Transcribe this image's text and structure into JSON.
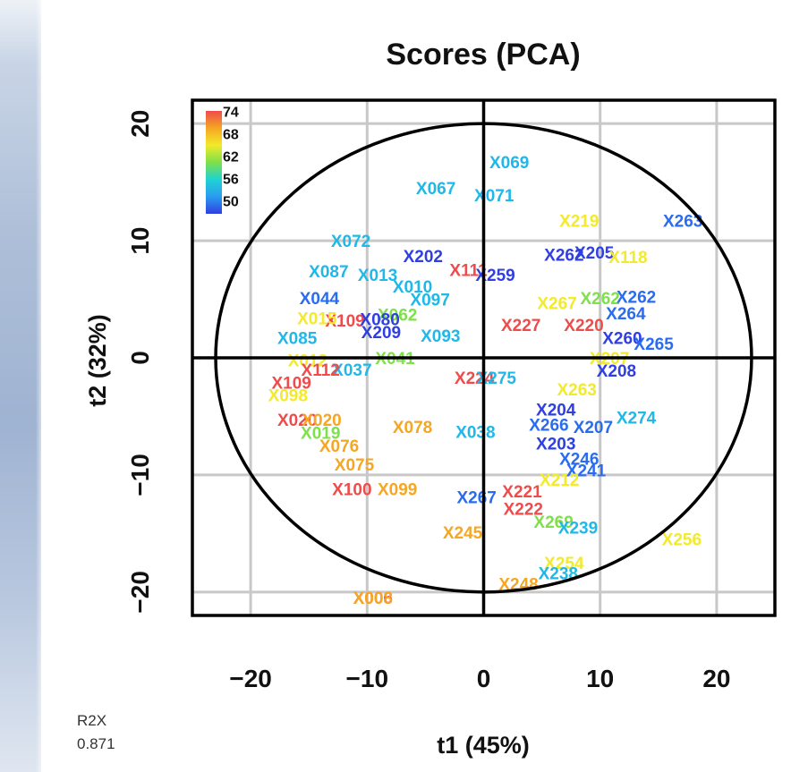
{
  "r2x": {
    "label": "R2X",
    "value": "0.871"
  },
  "chart_data": {
    "type": "scatter",
    "title": "Scores (PCA)",
    "xlabel": "t1 (45%)",
    "ylabel": "t2 (32%)",
    "xlim": [
      -25,
      25
    ],
    "ylim": [
      -22,
      22
    ],
    "xticks": [
      -20,
      -10,
      0,
      10,
      20
    ],
    "yticks": [
      -20,
      -10,
      0,
      10,
      20
    ],
    "grid": true,
    "ellipse": {
      "cx": 0,
      "cy": 0,
      "rx": 23,
      "ry": 20
    },
    "colorbar": {
      "position": "top-left",
      "labels": [
        "74",
        "68",
        "62",
        "56",
        "50"
      ],
      "colors": [
        "#ef4b4b",
        "#f5a623",
        "#f2ea2a",
        "#7ee04a",
        "#1fd3d3",
        "#2a9cf0",
        "#2f3fe0"
      ]
    },
    "points": [
      {
        "label": "X069",
        "x": 2.2,
        "y": 16.6,
        "c": "#1fb8e8"
      },
      {
        "label": "X067",
        "x": -4.1,
        "y": 14.4,
        "c": "#1fb8e8"
      },
      {
        "label": "X071",
        "x": 0.9,
        "y": 13.8,
        "c": "#1fb8e8"
      },
      {
        "label": "X219",
        "x": 8.2,
        "y": 11.6,
        "c": "#f2ea2a"
      },
      {
        "label": "X263",
        "x": 17.1,
        "y": 11.6,
        "c": "#2a6cf0"
      },
      {
        "label": "X072",
        "x": -11.4,
        "y": 9.9,
        "c": "#1fb8e8"
      },
      {
        "label": "X202",
        "x": -5.2,
        "y": 8.6,
        "c": "#2f3fe0"
      },
      {
        "label": "X111",
        "x": -1.3,
        "y": 7.4,
        "c": "#ef4b4b"
      },
      {
        "label": "X259",
        "x": 1.0,
        "y": 7.0,
        "c": "#2f3fe0"
      },
      {
        "label": "X262",
        "x": 6.9,
        "y": 8.7,
        "c": "#2f3fe0"
      },
      {
        "label": "X205",
        "x": 9.5,
        "y": 8.9,
        "c": "#2f3fe0"
      },
      {
        "label": "X118",
        "x": 12.4,
        "y": 8.5,
        "c": "#f2ea2a"
      },
      {
        "label": "X087",
        "x": -13.3,
        "y": 7.3,
        "c": "#1fb8e8"
      },
      {
        "label": "X013",
        "x": -9.1,
        "y": 7.0,
        "c": "#1fb8e8"
      },
      {
        "label": "X010",
        "x": -6.1,
        "y": 6.0,
        "c": "#1fb8e8"
      },
      {
        "label": "X097",
        "x": -4.6,
        "y": 4.9,
        "c": "#1fb8e8"
      },
      {
        "label": "X044",
        "x": -14.1,
        "y": 5.0,
        "c": "#2a6cf0"
      },
      {
        "label": "X062",
        "x": -7.4,
        "y": 3.6,
        "c": "#7ee04a"
      },
      {
        "label": "X262",
        "x": 10.0,
        "y": 5.0,
        "c": "#7ee04a"
      },
      {
        "label": "X262",
        "x": 13.1,
        "y": 5.1,
        "c": "#2a6cf0"
      },
      {
        "label": "X264",
        "x": 12.2,
        "y": 3.7,
        "c": "#2a6cf0"
      },
      {
        "label": "X267",
        "x": 6.3,
        "y": 4.6,
        "c": "#f2ea2a"
      },
      {
        "label": "X109",
        "x": -11.9,
        "y": 3.1,
        "c": "#ef4b4b"
      },
      {
        "label": "X080",
        "x": -8.9,
        "y": 3.2,
        "c": "#2f3fe0"
      },
      {
        "label": "X015",
        "x": -14.3,
        "y": 3.3,
        "c": "#f2ea2a"
      },
      {
        "label": "X209",
        "x": -8.8,
        "y": 2.1,
        "c": "#2f3fe0"
      },
      {
        "label": "X093",
        "x": -3.7,
        "y": 1.8,
        "c": "#1fb8e8"
      },
      {
        "label": "X085",
        "x": -16.0,
        "y": 1.6,
        "c": "#1fb8e8"
      },
      {
        "label": "X227",
        "x": 3.2,
        "y": 2.7,
        "c": "#ef4b4b"
      },
      {
        "label": "X220",
        "x": 8.6,
        "y": 2.7,
        "c": "#ef4b4b"
      },
      {
        "label": "X260",
        "x": 11.9,
        "y": 1.6,
        "c": "#2f3fe0"
      },
      {
        "label": "X265",
        "x": 14.6,
        "y": 1.1,
        "c": "#2a6cf0"
      },
      {
        "label": "X041",
        "x": -7.6,
        "y": -0.1,
        "c": "#7ee04a"
      },
      {
        "label": "X037",
        "x": -11.3,
        "y": -1.1,
        "c": "#1fb8e8"
      },
      {
        "label": "X012",
        "x": -15.1,
        "y": -0.3,
        "c": "#f2ea2a"
      },
      {
        "label": "X112",
        "x": -14.0,
        "y": -1.1,
        "c": "#ef4b4b"
      },
      {
        "label": "X109",
        "x": -16.5,
        "y": -2.2,
        "c": "#ef4b4b"
      },
      {
        "label": "X207",
        "x": 10.8,
        "y": -0.1,
        "c": "#f2ea2a"
      },
      {
        "label": "X208",
        "x": 11.4,
        "y": -1.2,
        "c": "#2f3fe0"
      },
      {
        "label": "X224",
        "x": -0.8,
        "y": -1.8,
        "c": "#ef4b4b"
      },
      {
        "label": "X275",
        "x": 1.1,
        "y": -1.8,
        "c": "#1fb8e8"
      },
      {
        "label": "X263",
        "x": 8.0,
        "y": -2.8,
        "c": "#f2ea2a"
      },
      {
        "label": "X098",
        "x": -16.8,
        "y": -3.3,
        "c": "#f2ea2a"
      },
      {
        "label": "X204",
        "x": 6.2,
        "y": -4.5,
        "c": "#2f3fe0"
      },
      {
        "label": "X274",
        "x": 13.1,
        "y": -5.2,
        "c": "#1fb8e8"
      },
      {
        "label": "X020",
        "x": -16.0,
        "y": -5.4,
        "c": "#ef4b4b"
      },
      {
        "label": "X020",
        "x": -13.9,
        "y": -5.4,
        "c": "#f5a623"
      },
      {
        "label": "X078",
        "x": -6.1,
        "y": -6.0,
        "c": "#f5a623"
      },
      {
        "label": "X038",
        "x": -0.7,
        "y": -6.4,
        "c": "#1fb8e8"
      },
      {
        "label": "X266",
        "x": 5.6,
        "y": -5.8,
        "c": "#2a6cf0"
      },
      {
        "label": "X207",
        "x": 9.4,
        "y": -6.0,
        "c": "#2a6cf0"
      },
      {
        "label": "X019",
        "x": -14.0,
        "y": -6.5,
        "c": "#7ee04a"
      },
      {
        "label": "X076",
        "x": -12.4,
        "y": -7.6,
        "c": "#f5a623"
      },
      {
        "label": "X203",
        "x": 6.2,
        "y": -7.4,
        "c": "#2f3fe0"
      },
      {
        "label": "X075",
        "x": -11.1,
        "y": -9.2,
        "c": "#f5a623"
      },
      {
        "label": "X246",
        "x": 8.2,
        "y": -8.7,
        "c": "#2a6cf0"
      },
      {
        "label": "X241",
        "x": 8.8,
        "y": -9.7,
        "c": "#2a6cf0"
      },
      {
        "label": "X212",
        "x": 6.5,
        "y": -10.5,
        "c": "#f2ea2a"
      },
      {
        "label": "X100",
        "x": -11.3,
        "y": -11.3,
        "c": "#ef4b4b"
      },
      {
        "label": "X099",
        "x": -7.4,
        "y": -11.3,
        "c": "#f5a623"
      },
      {
        "label": "X267",
        "x": -0.6,
        "y": -12.0,
        "c": "#2a6cf0"
      },
      {
        "label": "X221",
        "x": 3.3,
        "y": -11.5,
        "c": "#ef4b4b"
      },
      {
        "label": "X222",
        "x": 3.4,
        "y": -13.0,
        "c": "#ef4b4b"
      },
      {
        "label": "X269",
        "x": 6.0,
        "y": -14.1,
        "c": "#7ee04a"
      },
      {
        "label": "X239",
        "x": 8.1,
        "y": -14.6,
        "c": "#1fb8e8"
      },
      {
        "label": "X245",
        "x": -1.8,
        "y": -15.0,
        "c": "#f5a623"
      },
      {
        "label": "X256",
        "x": 17.0,
        "y": -15.6,
        "c": "#f2ea2a"
      },
      {
        "label": "X254",
        "x": 6.9,
        "y": -17.6,
        "c": "#f2ea2a"
      },
      {
        "label": "X238",
        "x": 6.4,
        "y": -18.5,
        "c": "#1fb8e8"
      },
      {
        "label": "X248",
        "x": 3.0,
        "y": -19.4,
        "c": "#f5a623"
      },
      {
        "label": "X006",
        "x": -9.5,
        "y": -20.6,
        "c": "#ef4b4b"
      },
      {
        "label": "X008",
        "x": -9.5,
        "y": -20.6,
        "c": "#f5a623"
      }
    ]
  }
}
